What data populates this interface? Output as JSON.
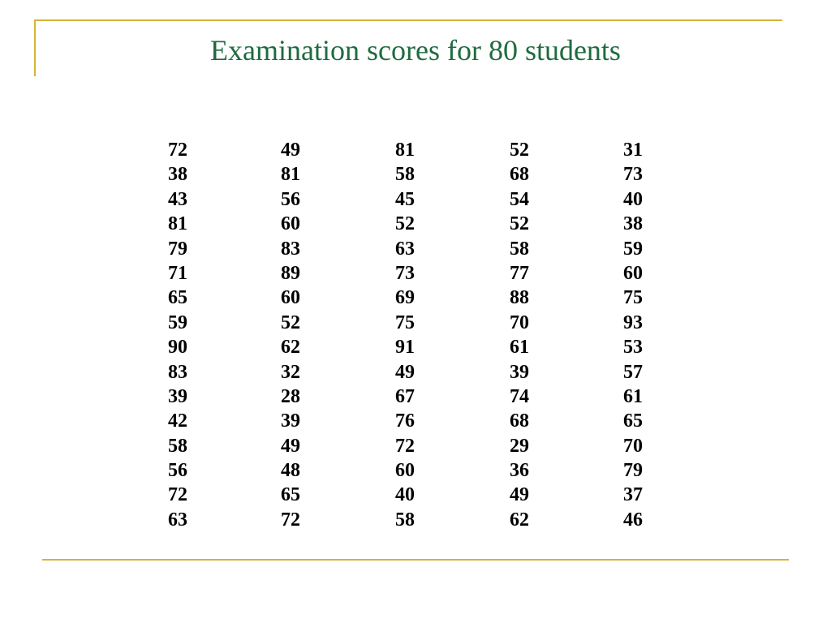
{
  "slide": {
    "title": "Examination scores for 80 students",
    "colors": {
      "title": "#1f6b3f",
      "rule": "#d4b43a",
      "text": "#000000"
    }
  },
  "scores": {
    "columns": [
      [
        "72",
        "38",
        "43",
        "81",
        "79",
        "71",
        "65",
        "59",
        "90",
        "83",
        "39",
        "42",
        "58",
        "56",
        "72",
        "63"
      ],
      [
        "49",
        "81",
        "56",
        "60",
        "83",
        "89",
        "60",
        "52",
        "62",
        "32",
        "28",
        "39",
        "49",
        "48",
        "65",
        "72"
      ],
      [
        "81",
        "58",
        "45",
        "52",
        "63",
        "73",
        "69",
        "75",
        "91",
        "49",
        "67",
        "76",
        "72",
        "60",
        "40",
        "58"
      ],
      [
        "52",
        "68",
        "54",
        "52",
        "58",
        "77",
        "88",
        "70",
        "61",
        "39",
        "74",
        "68",
        "29",
        "36",
        "49",
        "62"
      ],
      [
        "31",
        "73",
        "40",
        "38",
        "59",
        "60",
        "75",
        "93",
        "53",
        "57",
        "61",
        "65",
        "70",
        "79",
        "37",
        "46"
      ]
    ]
  }
}
